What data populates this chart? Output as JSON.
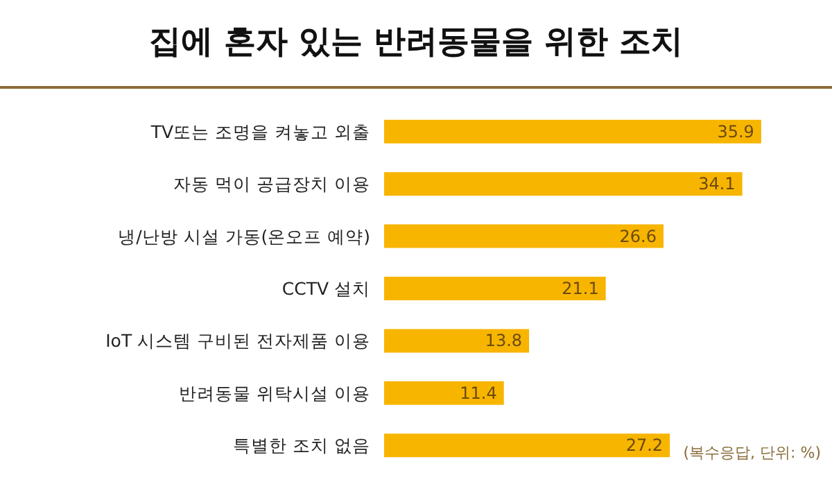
{
  "chart_data": {
    "type": "bar",
    "orientation": "horizontal",
    "title": "집에 혼자 있는 반려동물을 위한 조치",
    "categories": [
      "TV또는 조명을 켜놓고 외출",
      "자동 먹이 공급장치 이용",
      "냉/난방 시설 가동(온오프 예약)",
      "CCTV 설치",
      "IoT 시스템 구비된 전자제품 이용",
      "반려동물 위탁시설 이용",
      "특별한 조치 없음"
    ],
    "values": [
      35.9,
      34.1,
      26.6,
      21.1,
      13.8,
      11.4,
      27.2
    ],
    "color": "#f7b500",
    "data_labels": true,
    "annotations": [
      "(복수응답, 단위: %)"
    ]
  }
}
